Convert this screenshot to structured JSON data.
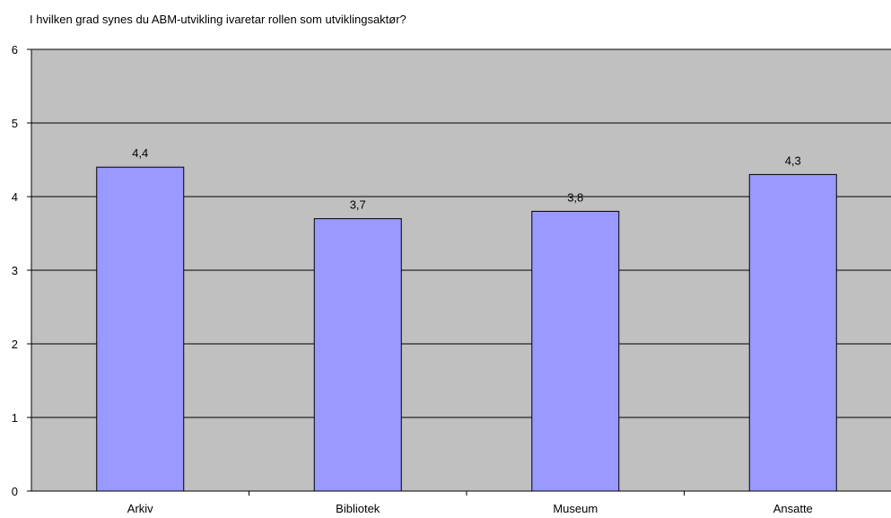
{
  "chart_data": {
    "type": "bar",
    "title": "I hvilken grad synes du ABM-utvikling ivaretar rollen som utviklingsaktør?",
    "categories": [
      "Arkiv",
      "Bibliotek",
      "Museum",
      "Ansatte"
    ],
    "values": [
      4.4,
      3.7,
      3.8,
      4.3
    ],
    "data_labels": [
      "4,4",
      "3,7",
      "3,8",
      "4,3"
    ],
    "xlabel": "",
    "ylabel": "",
    "ylim": [
      0,
      6
    ],
    "yticks": [
      0,
      1,
      2,
      3,
      4,
      5,
      6
    ],
    "grid": true,
    "legend": "none",
    "colors": {
      "plot_background": "#c0c0c0",
      "bar_fill": "#9999ff",
      "bar_stroke": "#000000",
      "gridline": "#000000"
    }
  }
}
